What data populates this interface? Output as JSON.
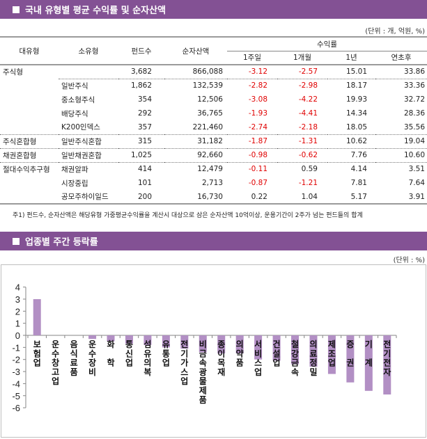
{
  "section1": {
    "title": "국내 유형별 평균 수익률 및 순자산액",
    "unit": "(단위 : 개, 억원, %)",
    "headers": {
      "major_type": "대유형",
      "minor_type": "소유형",
      "fund_count": "펀드수",
      "net_assets": "순자산액",
      "returns_group": "수익률",
      "week1": "1주일",
      "month1": "1개월",
      "year1": "1년",
      "ytd": "연초후"
    },
    "rows": [
      {
        "major": "주식형",
        "minor": "",
        "count": "3,682",
        "assets": "866,088",
        "w1": "-3.12",
        "m1": "-2.57",
        "y1": "15.01",
        "ytd": "33.86"
      },
      {
        "major": "",
        "minor": "일반주식",
        "count": "1,862",
        "assets": "132,539",
        "w1": "-2.82",
        "m1": "-2.98",
        "y1": "18.17",
        "ytd": "33.36"
      },
      {
        "major": "",
        "minor": "중소형주식",
        "count": "354",
        "assets": "12,506",
        "w1": "-3.08",
        "m1": "-4.22",
        "y1": "19.93",
        "ytd": "32.72"
      },
      {
        "major": "",
        "minor": "배당주식",
        "count": "292",
        "assets": "36,765",
        "w1": "-1.93",
        "m1": "-4.41",
        "y1": "14.34",
        "ytd": "28.36"
      },
      {
        "major": "",
        "minor": "K200인덱스",
        "count": "357",
        "assets": "221,460",
        "w1": "-2.74",
        "m1": "-2.18",
        "y1": "18.05",
        "ytd": "35.56"
      },
      {
        "major": "주식혼합형",
        "minor": "일반주식혼합",
        "count": "315",
        "assets": "31,182",
        "w1": "-1.87",
        "m1": "-1.31",
        "y1": "10.62",
        "ytd": "19.04"
      },
      {
        "major": "채권혼합형",
        "minor": "일반채권혼합",
        "count": "1,025",
        "assets": "92,660",
        "w1": "-0.98",
        "m1": "-0.62",
        "y1": "7.76",
        "ytd": "10.60"
      },
      {
        "major": "절대수익추구형",
        "minor": "채권알파",
        "count": "414",
        "assets": "12,479",
        "w1": "-0.11",
        "m1": "0.59",
        "y1": "4.14",
        "ytd": "3.51"
      },
      {
        "major": "",
        "minor": "시장중립",
        "count": "101",
        "assets": "2,713",
        "w1": "-0.87",
        "m1": "-1.21",
        "y1": "7.81",
        "ytd": "7.64"
      },
      {
        "major": "",
        "minor": "공모주하이일드",
        "count": "200",
        "assets": "16,730",
        "w1": "0.22",
        "m1": "1.04",
        "y1": "5.17",
        "ytd": "3.91"
      }
    ],
    "note": "주1) 펀드수, 순자산액은 해당유형 가중평균수익률을 계산시 대상으로 삼은 순자산액 10억이상, 운용기간이 2주가 넘는 펀드들의 합계"
  },
  "section2": {
    "title": "업종별 주간 등락률",
    "unit": "(단위 : %)"
  },
  "colors": {
    "title_bar": "#835194",
    "bar_fill": "#b28fc4",
    "negative_text": "#e00000"
  },
  "chart_data": {
    "type": "bar",
    "title": "업종별 주간 등락률",
    "xlabel": "",
    "ylabel": "",
    "unit": "%",
    "ylim": [
      -6,
      4
    ],
    "yticks": [
      4,
      3,
      2,
      1,
      0,
      -1,
      -2,
      -3,
      -4,
      -5,
      -6
    ],
    "grid": false,
    "legend": null,
    "categories": [
      "보험업",
      "운수창고업",
      "음식료품",
      "운수장비",
      "화학",
      "통신업",
      "섬유의복",
      "유통업",
      "전기가스업",
      "비금속광물제품",
      "종이목재",
      "의약품",
      "서비스업",
      "건설업",
      "철강금속",
      "의료정밀",
      "제조업",
      "증권",
      "기계",
      "전기전자"
    ],
    "category_labels": [
      "보\n험\n업",
      "운\n수\n창\n고\n업",
      "음\n식\n료\n품",
      "운\n수\n장\n비",
      "화\n\n학",
      "통\n신\n업",
      "섬\n유\n의\n복",
      "유\n통\n업",
      "전\n기\n가\n스\n업",
      "비\n금\n속\n광\n물\n제\n품",
      "종\n이\n목\n재",
      "의\n약\n품",
      "서\n비\n스\n업",
      "건\n설\n업",
      "철\n강\n금\n속",
      "의\n료\n정\n밀",
      "제\n조\n업",
      "증\n\n권",
      "기\n\n계",
      "전\n기\n전\n자"
    ],
    "values": [
      3.0,
      0.0,
      0.0,
      -0.3,
      -0.5,
      -0.7,
      -0.8,
      -1.0,
      -1.1,
      -1.4,
      -1.5,
      -1.5,
      -2.0,
      -2.1,
      -2.4,
      -2.6,
      -3.2,
      -3.9,
      -4.6,
      -4.9
    ]
  }
}
